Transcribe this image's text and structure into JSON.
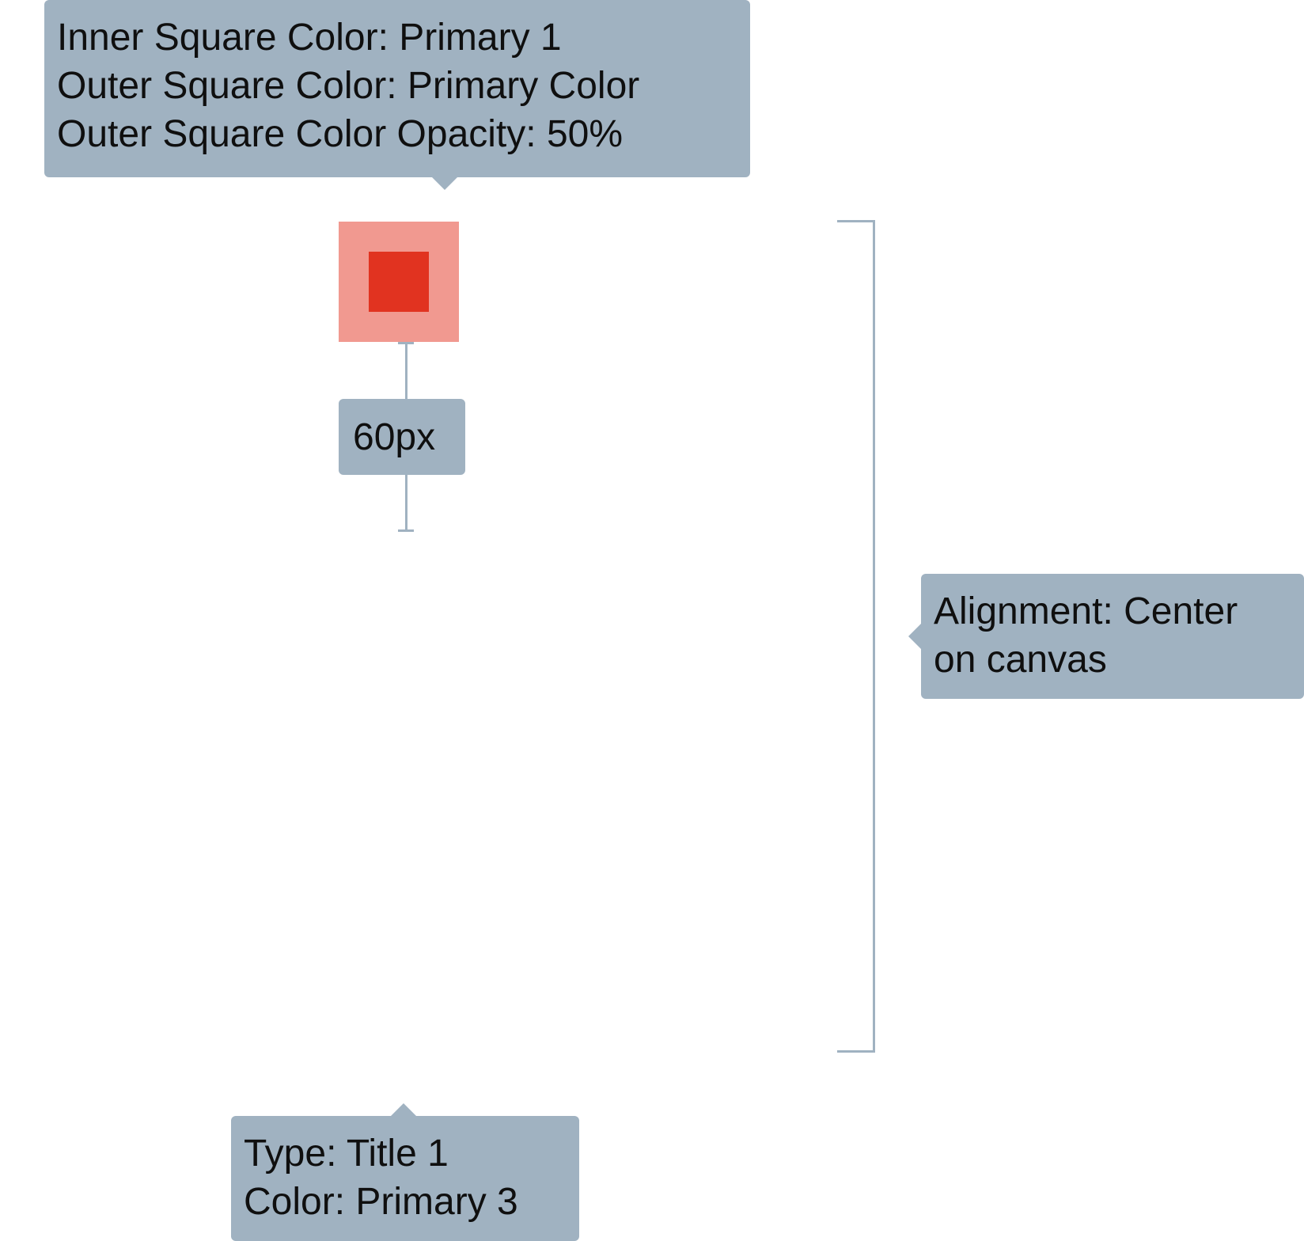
{
  "annotations": {
    "square": {
      "lines": [
        "Inner Square Color: Primary 1",
        "Outer Square Color: Primary Color",
        "Outer Square Color Opacity: 50%"
      ]
    },
    "spacing": {
      "label": "60px"
    },
    "alignment": {
      "lines": [
        "Alignment: Center",
        "on canvas"
      ]
    },
    "title": {
      "lines": [
        "Type: Title 1",
        "Color: Primary 3"
      ]
    }
  },
  "colors": {
    "primary_1": "#e13320",
    "primary_color_50": "#f19990",
    "annotation_background": "#a0b2c1"
  }
}
